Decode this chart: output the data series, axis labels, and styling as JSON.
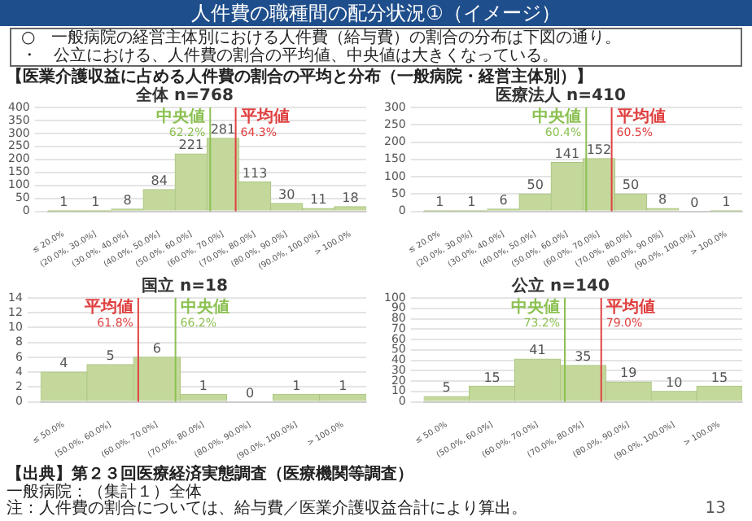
{
  "chart_data": [
    {
      "type": "other",
      "title": "人件費の職種間の配分状況①（イメージ）",
      "annotations": [
        "○　一般病院の経営主体別における人件費（給与費）の割合の分布は下図の通り。",
        "・　公立における、人件費の割合の平均値、中央値は大きくなっている。",
        "【医業介護収益に占める人件費の割合の平均と分布（一般病院・経営主体別）】"
      ]
    },
    {
      "type": "bar",
      "title": "全体 n=768",
      "color": "#c4d89c",
      "values": [
        1,
        1,
        8,
        84,
        221,
        281,
        113,
        30,
        11,
        18
      ],
      "data_labels": true,
      "grid": "y",
      "legend": false,
      "categories": [
        "≤ 20.0%",
        "(20.0%, 30.0%]",
        "(30.0%, 40.0%]",
        "(40.0%, 50.0%]",
        "(50.0%, 60.0%]",
        "(60.0%, 70.0%]",
        "(70.0%, 80.0%]",
        "(80.0%, 90.0%]",
        "(90.0%, 100.0%]",
        "> 100.0%"
      ],
      "ylim": [
        0,
        400
      ],
      "yticks": [
        0,
        50,
        100,
        150,
        200,
        250,
        300,
        350,
        400
      ],
      "ref_lines": [
        {
          "axis": "x",
          "value": "(60.0%, 70.0%]",
          "label": "中央値\n62.2%",
          "color": "#8cc152"
        },
        {
          "axis": "x",
          "value": "(60.0%, 70.0%]",
          "label": "平均値\n64.3%",
          "color": "#e04040"
        }
      ]
    },
    {
      "type": "bar",
      "title": "医療法人 n=410",
      "color": "#c4d89c",
      "values": [
        1,
        1,
        6,
        50,
        141,
        152,
        50,
        8,
        0,
        1
      ],
      "data_labels": true,
      "grid": "y",
      "legend": false,
      "categories": [
        "≤ 20.0%",
        "(20.0%, 30.0%]",
        "(30.0%, 40.0%]",
        "(40.0%, 50.0%]",
        "(50.0%, 60.0%]",
        "(60.0%, 70.0%]",
        "(70.0%, 80.0%]",
        "(80.0%, 90.0%]",
        "(90.0%, 100.0%]",
        "> 100.0%"
      ],
      "ylim": [
        0,
        300
      ],
      "yticks": [
        0,
        50,
        100,
        150,
        200,
        250,
        300
      ],
      "ref_lines": [
        {
          "axis": "x",
          "value": "(60.0%, 70.0%]",
          "label": "中央値\n60.4%",
          "color": "#8cc152"
        },
        {
          "axis": "x",
          "value": "(60.0%, 70.0%]",
          "label": "平均値\n60.5%",
          "color": "#e04040"
        }
      ]
    },
    {
      "type": "bar",
      "title": "国立 n=18",
      "color": "#c4d89c",
      "values": [
        4,
        5,
        6,
        1,
        0,
        1,
        1
      ],
      "data_labels": true,
      "grid": "y",
      "legend": false,
      "categories": [
        "≤ 50.0%",
        "(50.0%, 60.0%]",
        "(60.0%, 70.0%]",
        "(70.0%, 80.0%]",
        "(80.0%, 90.0%]",
        "(90.0%, 100.0%]",
        "> 100.0%"
      ],
      "ylim": [
        0,
        14
      ],
      "yticks": [
        0,
        2,
        4,
        6,
        8,
        10,
        12,
        14
      ],
      "ref_lines": [
        {
          "axis": "x",
          "value": "(60.0%, 70.0%]",
          "label": "平均値\n61.8%",
          "color": "#e04040"
        },
        {
          "axis": "x",
          "value": "(60.0%, 70.0%]",
          "label": "中央値\n66.2%",
          "color": "#8cc152"
        }
      ]
    },
    {
      "type": "bar",
      "title": "公立 n=140",
      "color": "#c4d89c",
      "values": [
        5,
        15,
        41,
        35,
        19,
        10,
        15
      ],
      "data_labels": true,
      "grid": "y",
      "legend": false,
      "categories": [
        "≤ 50.0%",
        "(50.0%, 60.0%]",
        "(60.0%, 70.0%]",
        "(70.0%, 80.0%]",
        "(80.0%, 90.0%]",
        "(90.0%, 100.0%]",
        "> 100.0%"
      ],
      "ylim": [
        0,
        100
      ],
      "yticks": [
        0,
        10,
        20,
        30,
        40,
        50,
        60,
        70,
        80,
        90,
        100
      ],
      "ref_lines": [
        {
          "axis": "x",
          "value": "(70.0%, 80.0%]",
          "label": "中央値\n73.2%",
          "color": "#8cc152"
        },
        {
          "axis": "x",
          "value": "(70.0%, 80.0%]",
          "label": "平均値\n79.0%",
          "color": "#e04040"
        }
      ]
    },
    {
      "type": "other",
      "annotations": [
        "【出典】第２３回医療経済実態調査（医療機関等調査）",
        "一般病院：（集計１）全体",
        "注：人件費の割合については、給与費／医業介護収益合計により算出。",
        "13"
      ]
    }
  ]
}
